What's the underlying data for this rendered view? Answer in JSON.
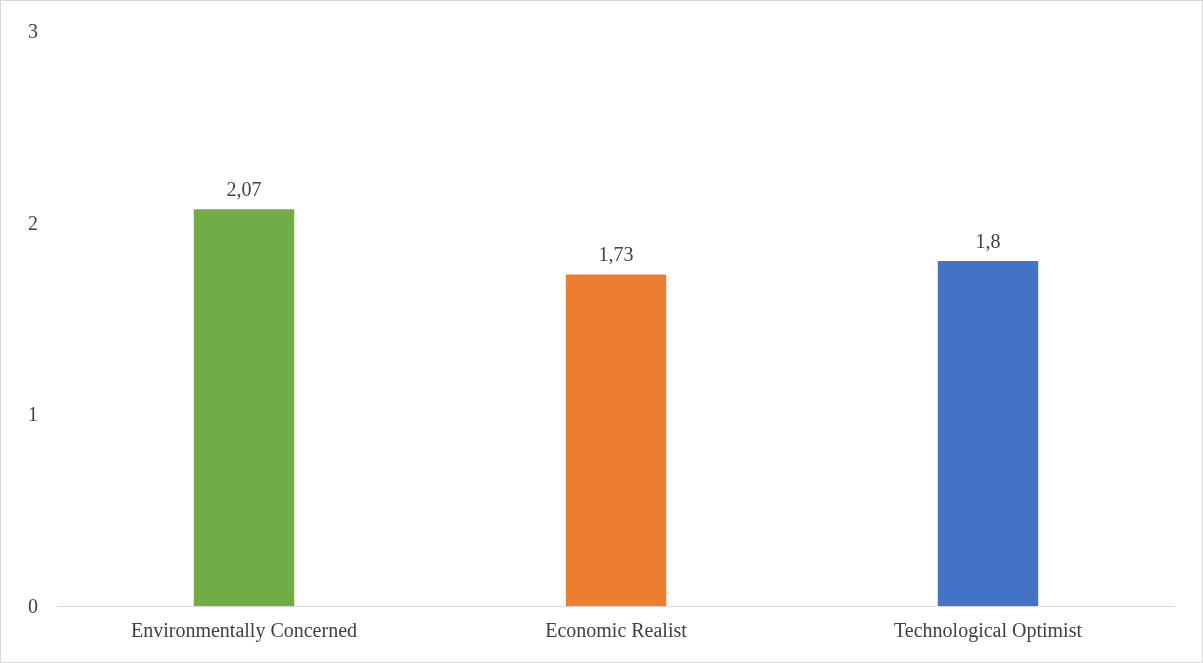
{
  "chart_data": {
    "type": "bar",
    "categories": [
      "Environmentally Concerned",
      "Economic Realist",
      "Technological Optimist"
    ],
    "values": [
      2.07,
      1.73,
      1.8
    ],
    "colors": [
      "#70ad47",
      "#ed7d31",
      "#4472c4"
    ],
    "value_labels": [
      "2,07",
      "1,73",
      "1,8"
    ],
    "ylim": [
      0,
      3
    ],
    "yticks": [
      0,
      1,
      2,
      3
    ]
  }
}
